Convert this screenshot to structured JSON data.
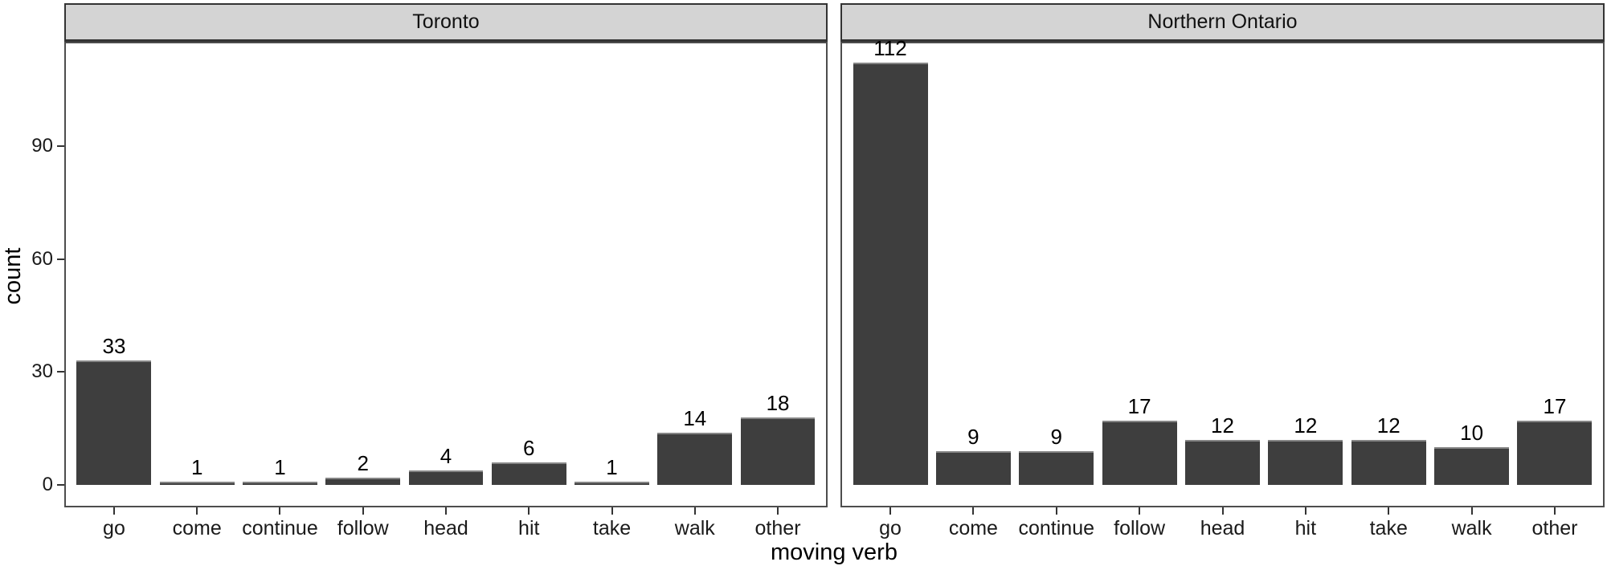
{
  "chart_data": {
    "type": "bar",
    "title": "",
    "xlabel": "moving verb",
    "ylabel": "count",
    "categories": [
      "go",
      "come",
      "continue",
      "follow",
      "head",
      "hit",
      "take",
      "walk",
      "other"
    ],
    "series": [
      {
        "name": "Toronto",
        "values": [
          33,
          1,
          1,
          2,
          4,
          6,
          1,
          14,
          18
        ]
      },
      {
        "name": "Northern Ontario",
        "values": [
          112,
          9,
          9,
          17,
          12,
          12,
          12,
          10,
          17
        ]
      }
    ],
    "facet_layout": "columns",
    "y_ticks": [
      0,
      30,
      60,
      90
    ],
    "ylim": [
      -5.9,
      117.6
    ],
    "grid": false,
    "bar_labels": true,
    "legend": "none",
    "colors": {
      "bar_fill": "#3e3e3e",
      "bar_top_edge": "#858585",
      "strip_fill": "#d4d4d4",
      "strip_border": "#333333",
      "panel_border": "#4d4d4d",
      "axis_text": "#1a1a1a",
      "title_text": "#000000"
    }
  }
}
